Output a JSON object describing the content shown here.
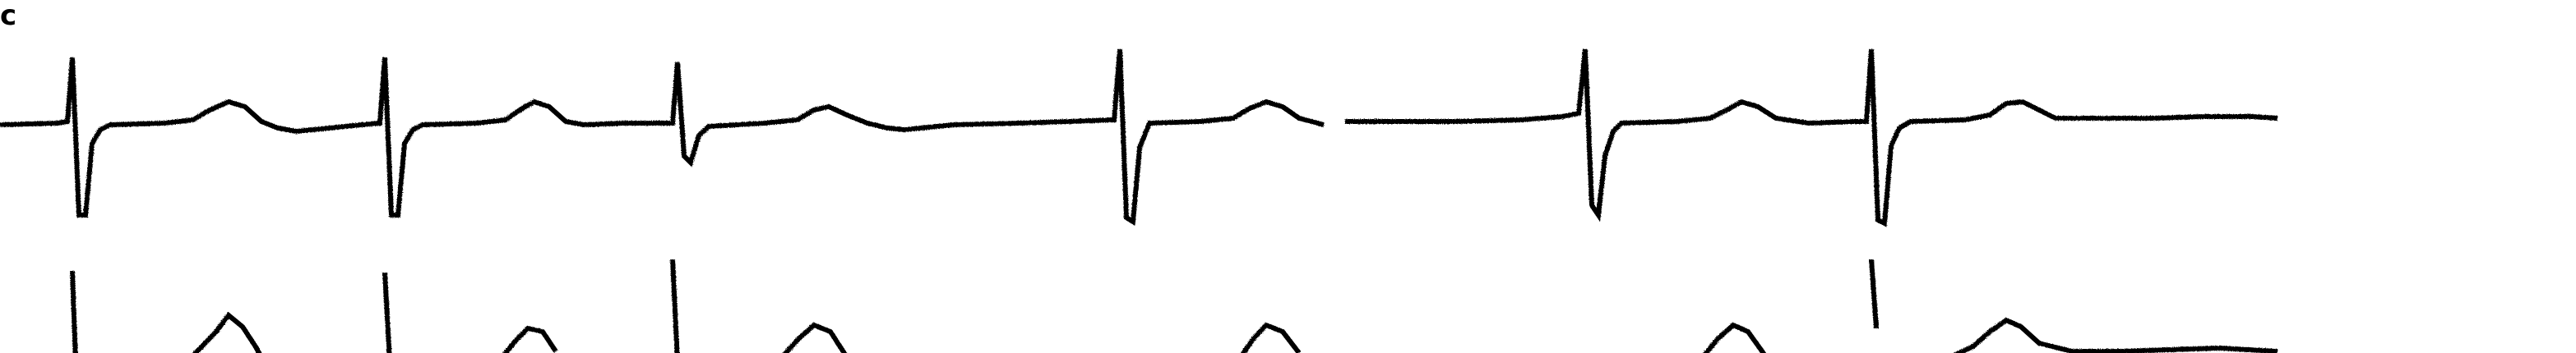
{
  "corner_mark": "c",
  "colors": {
    "background": "#ffffff",
    "trace": "#000000"
  },
  "description_note": ""
}
